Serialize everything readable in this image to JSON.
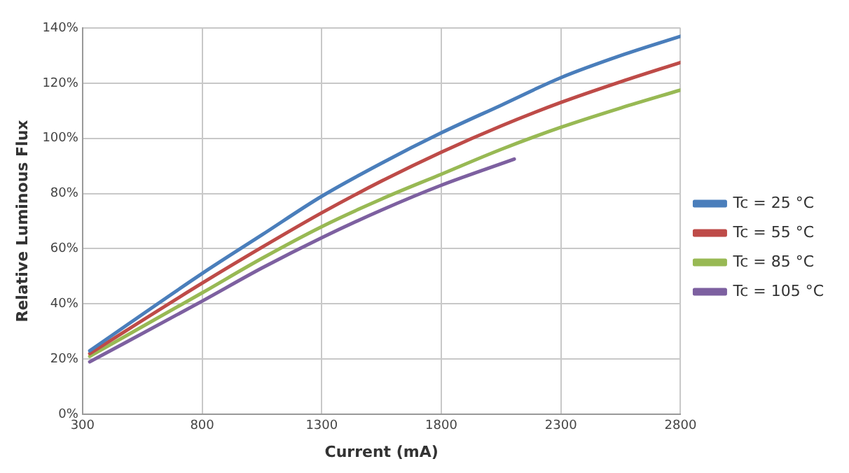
{
  "chart_data": {
    "type": "line",
    "xlabel": "Current (mA)",
    "ylabel": "Relative Luminous Flux",
    "xlim": [
      300,
      2800
    ],
    "xticks": [
      300,
      800,
      1300,
      1800,
      2300,
      2800
    ],
    "ylim": [
      0,
      140
    ],
    "yticks": [
      {
        "value": 0,
        "label": "0%"
      },
      {
        "value": 20,
        "label": "20%"
      },
      {
        "value": 40,
        "label": "40%"
      },
      {
        "value": 60,
        "label": "60%"
      },
      {
        "value": 80,
        "label": "80%"
      },
      {
        "value": 100,
        "label": "100%"
      },
      {
        "value": 120,
        "label": "120%"
      },
      {
        "value": 140,
        "label": "140%"
      }
    ],
    "grid": true,
    "legend": "right",
    "marker": "none",
    "line_style": "solid",
    "series": [
      {
        "name": "Tc = 25 °C",
        "color": "#4a7ebb",
        "x": [
          330,
          800,
          1050,
          1300,
          1550,
          1800,
          2050,
          2300,
          2550,
          2800
        ],
        "values": [
          23,
          51,
          65,
          79,
          91,
          102,
          112,
          122,
          130,
          137
        ]
      },
      {
        "name": "Tc = 55 °C",
        "color": "#be4b48",
        "x": [
          330,
          800,
          1050,
          1300,
          1550,
          1800,
          2050,
          2300,
          2550,
          2800
        ],
        "values": [
          22,
          47.5,
          60.5,
          73,
          84.5,
          95,
          104.5,
          113,
          120.5,
          127.5
        ]
      },
      {
        "name": "Tc = 85 °C",
        "color": "#98b954",
        "x": [
          330,
          800,
          1050,
          1300,
          1550,
          1800,
          2050,
          2300,
          2550,
          2800
        ],
        "values": [
          21,
          44,
          56.5,
          68,
          78,
          87,
          96,
          104,
          111,
          117.5
        ]
      },
      {
        "name": "Tc = 105 °C",
        "color": "#7d60a0",
        "x": [
          330,
          800,
          1050,
          1300,
          1550,
          1800,
          2105
        ],
        "values": [
          19,
          41,
          53,
          64,
          74,
          83,
          92.5
        ]
      }
    ]
  }
}
